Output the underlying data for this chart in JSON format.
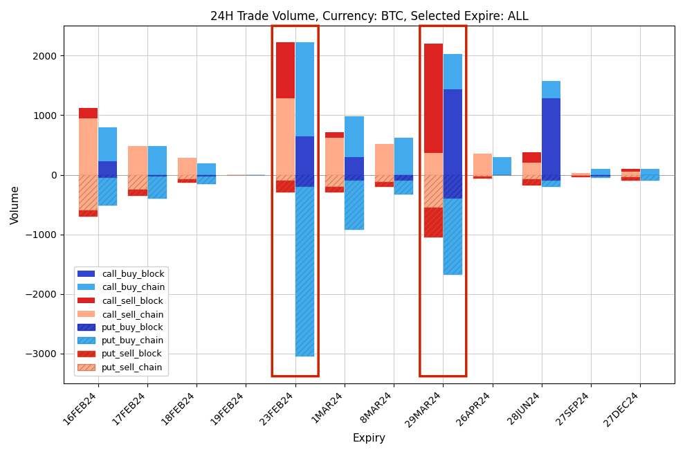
{
  "title": "24H Trade Volume, Currency: BTC, Selected Expire: ALL",
  "xlabel": "Expiry",
  "ylabel": "Volume",
  "categories": [
    "16FEB24",
    "17FEB24",
    "18FEB24",
    "19FEB24",
    "23FEB24",
    "1MAR24",
    "8MAR24",
    "29MAR24",
    "26APR24",
    "28JUN24",
    "27SEP24",
    "27DEC24"
  ],
  "highlighted": [
    "23FEB24",
    "29MAR24"
  ],
  "call_buy_block": [
    230,
    0,
    0,
    0,
    650,
    300,
    0,
    1430,
    0,
    1280,
    0,
    0
  ],
  "call_buy_chain": [
    570,
    480,
    190,
    0,
    1580,
    680,
    620,
    600,
    300,
    300,
    100,
    100
  ],
  "call_sell_block": [
    170,
    0,
    0,
    0,
    950,
    100,
    0,
    1830,
    0,
    180,
    0,
    50
  ],
  "call_sell_chain": [
    950,
    480,
    280,
    0,
    1280,
    620,
    520,
    370,
    350,
    200,
    30,
    50
  ],
  "put_buy_block": [
    -50,
    -30,
    -30,
    0,
    -200,
    -100,
    -100,
    -400,
    0,
    -100,
    -30,
    -10
  ],
  "put_buy_chain": [
    -470,
    -370,
    -130,
    0,
    -2850,
    -820,
    -230,
    -1280,
    0,
    -100,
    -20,
    -90
  ],
  "put_sell_block": [
    -100,
    -100,
    -50,
    0,
    -200,
    -100,
    -80,
    -500,
    -30,
    -100,
    -20,
    -60
  ],
  "put_sell_chain": [
    -600,
    -250,
    -80,
    0,
    -100,
    -200,
    -120,
    -550,
    -30,
    -80,
    -20,
    -40
  ],
  "ylim": [
    -3500,
    2500
  ],
  "colors": {
    "call_buy_block": "#3344cc",
    "call_buy_chain": "#44aaee",
    "call_sell_block": "#dd2222",
    "call_sell_chain": "#ffaa88",
    "put_buy_block": "#3344cc",
    "put_buy_chain": "#44aaee",
    "put_sell_block": "#dd2222",
    "put_sell_chain": "#ffaa88"
  },
  "highlight_color": "#cc2200",
  "background_color": "#ffffff",
  "grid_color": "#cccccc",
  "bar_width": 0.38
}
